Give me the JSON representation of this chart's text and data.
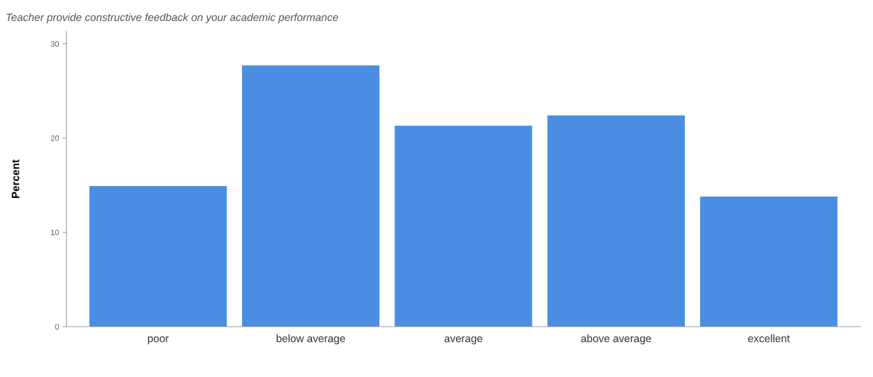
{
  "chart_data": {
    "type": "bar",
    "title": "Teacher provide constructive feedback on your academic performance",
    "ylabel": "Percent",
    "categories": [
      "poor",
      "below average",
      "average",
      "above average",
      "excellent"
    ],
    "values": [
      14.9,
      27.7,
      21.3,
      22.4,
      13.8
    ],
    "color": "#4a8ee3",
    "ylim": [
      0,
      31.3
    ],
    "yticks": [
      0,
      10,
      20,
      30
    ],
    "grid": false,
    "legend": false
  }
}
